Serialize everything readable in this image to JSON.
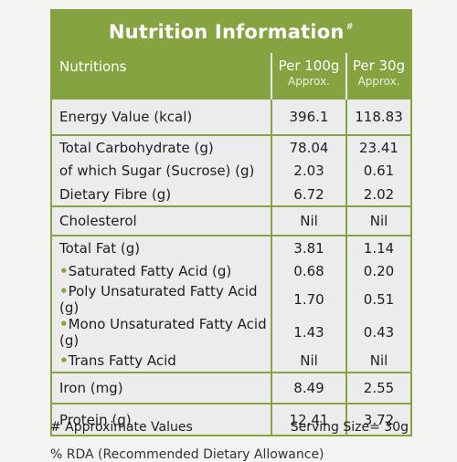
{
  "title": "Nutrition Information",
  "title_mark": "#",
  "header": {
    "col_name": "Nutritions",
    "col_100": "Per 100g",
    "col_100_sub": "Approx.",
    "col_30": "Per 30g",
    "col_30_sub": "Approx."
  },
  "groups": [
    {
      "rows": [
        {
          "name": "Energy Value (kcal)",
          "p100": "396.1",
          "p30": "118.83",
          "bullet": false
        }
      ]
    },
    {
      "rows": [
        {
          "name": "Total Carbohydrate (g)",
          "p100": "78.04",
          "p30": "23.41",
          "bullet": false
        },
        {
          "name": "of which Sugar (Sucrose) (g)",
          "p100": "2.03",
          "p30": "0.61",
          "bullet": false
        },
        {
          "name": "Dietary Fibre (g)",
          "p100": "6.72",
          "p30": "2.02",
          "bullet": false
        }
      ]
    },
    {
      "rows": [
        {
          "name": "Cholesterol",
          "p100": "Nil",
          "p30": "Nil",
          "bullet": false
        }
      ]
    },
    {
      "rows": [
        {
          "name": "Total Fat (g)",
          "p100": "3.81",
          "p30": "1.14",
          "bullet": false
        },
        {
          "name": "Saturated Fatty Acid (g)",
          "p100": "0.68",
          "p30": "0.20",
          "bullet": true
        },
        {
          "name": "Poly Unsaturated Fatty Acid (g)",
          "p100": "1.70",
          "p30": "0.51",
          "bullet": true
        },
        {
          "name": "Mono Unsaturated Fatty Acid (g)",
          "p100": "1.43",
          "p30": "0.43",
          "bullet": true
        },
        {
          "name": "Trans Fatty Acid",
          "p100": "Nil",
          "p30": "Nil",
          "bullet": true
        }
      ]
    },
    {
      "rows": [
        {
          "name": "Iron (mg)",
          "p100": "8.49",
          "p30": "2.55",
          "bullet": false
        }
      ]
    },
    {
      "rows": [
        {
          "name": "Protein (g)",
          "p100": "12.41",
          "p30": "3.72",
          "bullet": false
        }
      ]
    }
  ],
  "footnote": "# Approximate Values",
  "serving_size": "Serving Size= 30g",
  "cutoff_text": "% RDA (Recommended Dietary Allowance)",
  "colors": {
    "accent": "#86a342",
    "panel": "#ececec",
    "text": "#1e1e1e"
  }
}
